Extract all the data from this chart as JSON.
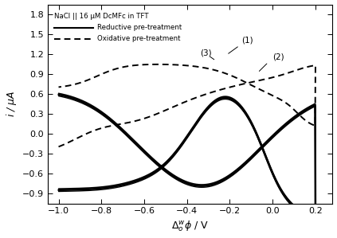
{
  "title_line1": "NaCl || 16 μM DcMFc in TFT",
  "legend_solid": "Reductive pre-treatment",
  "legend_dashed": "Oxidative pre-treatment",
  "xlim": [
    -1.05,
    0.28
  ],
  "ylim": [
    -1.05,
    1.95
  ],
  "yticks": [
    -0.9,
    -0.6,
    -0.3,
    0.0,
    0.3,
    0.6,
    0.9,
    1.2,
    1.5,
    1.8
  ],
  "xticks": [
    -1.0,
    -0.8,
    -0.6,
    -0.4,
    -0.2,
    0.0,
    0.2
  ],
  "bg_color": "#ffffff"
}
